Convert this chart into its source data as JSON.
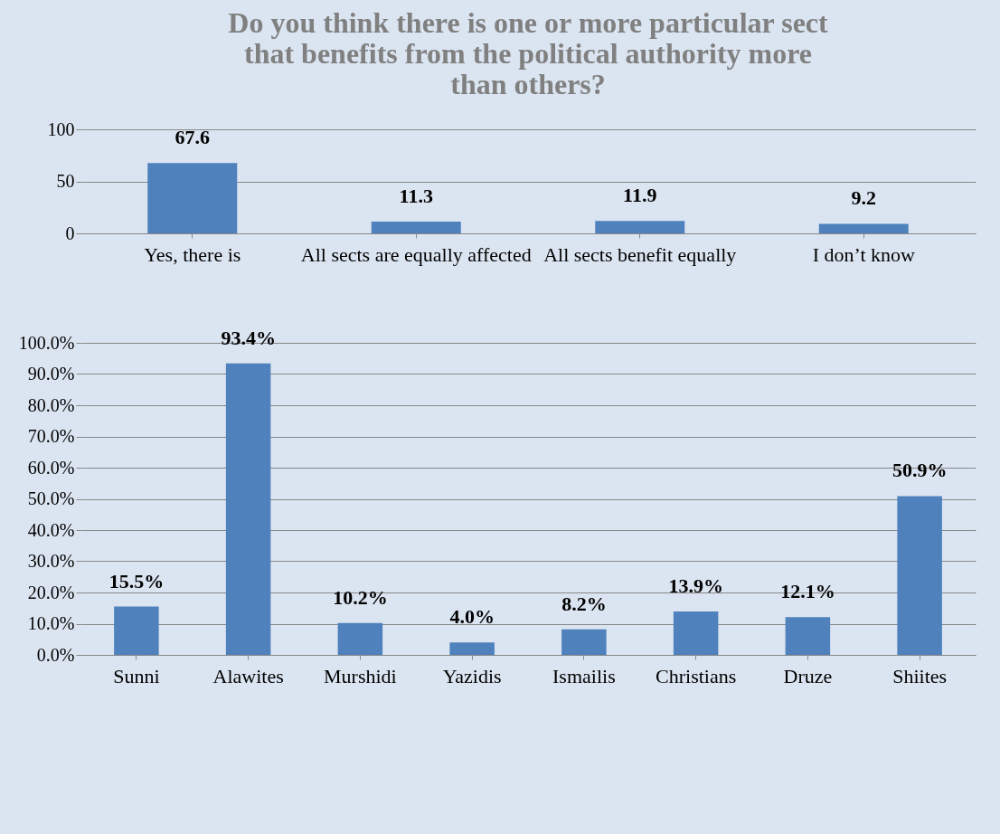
{
  "chart_data": [
    {
      "type": "bar",
      "title": "Do you think there is one or more particular sect that benefits from the political authority more than others?",
      "categories": [
        "Yes, there is",
        "All sects are equally affected",
        "All sects benefit equally",
        "I don’t know"
      ],
      "values": [
        67.6,
        11.3,
        11.9,
        9.2
      ],
      "color": "#4f81bd",
      "ylim": [
        0,
        100
      ],
      "yticks": [
        0,
        50,
        100
      ],
      "grid": "y",
      "data_labels": true
    },
    {
      "type": "bar",
      "categories": [
        "Sunni",
        "Alawites",
        "Murshidi",
        "Yazidis",
        "Ismailis",
        "Christians",
        "Druze",
        "Shiites"
      ],
      "values": [
        15.5,
        93.4,
        10.2,
        4.0,
        8.2,
        13.9,
        12.1,
        50.9
      ],
      "color": "#4f81bd",
      "value_labels": [
        "15.5%",
        "93.4%",
        "10.2%",
        "4.0%",
        "8.2%",
        "13.9%",
        "12.1%",
        "50.9%"
      ],
      "ylim": [
        0,
        100
      ],
      "yticks": [
        {
          "value": 0,
          "label": "0.0%"
        },
        {
          "value": 10,
          "label": "10.0%"
        },
        {
          "value": 20,
          "label": "20.0%"
        },
        {
          "value": 30,
          "label": "30.0%"
        },
        {
          "value": 40,
          "label": "40.0%"
        },
        {
          "value": 50,
          "label": "50.0%"
        },
        {
          "value": 60,
          "label": "60.0%"
        },
        {
          "value": 70,
          "label": "70.0%"
        },
        {
          "value": 80,
          "label": "80.0%"
        },
        {
          "value": 90,
          "label": "90.0%"
        },
        {
          "value": 100,
          "label": "100.0%"
        }
      ],
      "grid": "y"
    }
  ]
}
